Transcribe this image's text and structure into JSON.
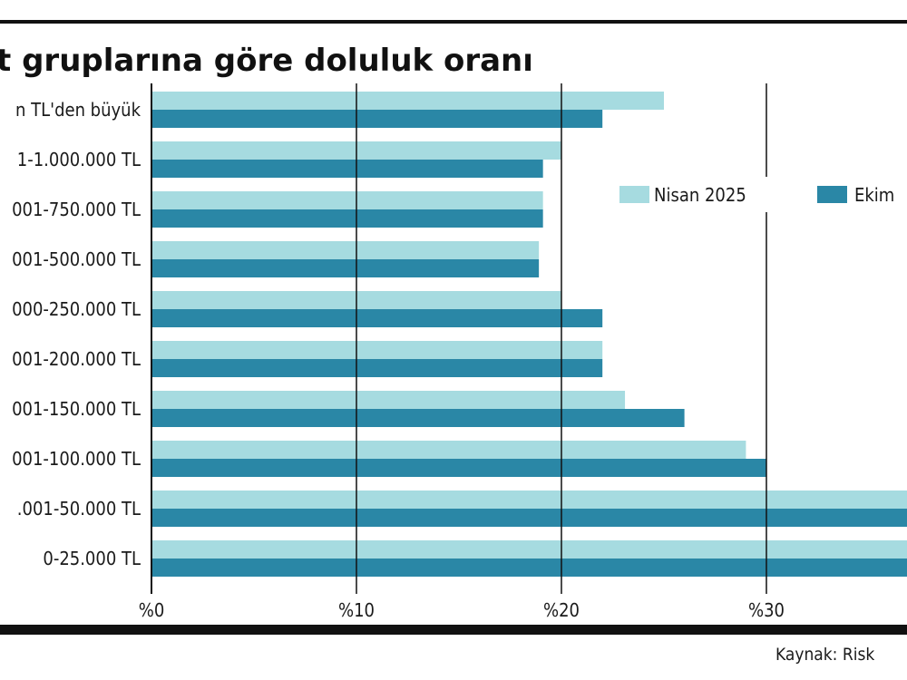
{
  "colors": {
    "nisan": "#a6dbe0",
    "ekim": "#2a87a6",
    "grid": "#111111"
  },
  "chart_data": {
    "type": "bar",
    "orientation": "horizontal",
    "title": "t gruplarına göre doluluk oranı",
    "source": "Kaynak: Risk",
    "categories": [
      "n TL'den büyük",
      "1-1.000.000 TL",
      "001-750.000 TL",
      "001-500.000 TL",
      "000-250.000 TL",
      "001-200.000 TL",
      "001-150.000 TL",
      "001-100.000 TL",
      ".001-50.000 TL",
      "0-25.000 TL"
    ],
    "series": [
      {
        "name": "Nisan 2025",
        "values": [
          25,
          20,
          19.1,
          18.9,
          20,
          22,
          23.1,
          29,
          38,
          38
        ]
      },
      {
        "name": "Ekim",
        "values": [
          22,
          19.1,
          19.1,
          18.9,
          22,
          22,
          26,
          30,
          38,
          38
        ]
      }
    ],
    "xticks": [
      "%0",
      "%10",
      "%20",
      "%30"
    ],
    "xlim": [
      0,
      36.9
    ],
    "grid": true,
    "legend": "top-right"
  }
}
